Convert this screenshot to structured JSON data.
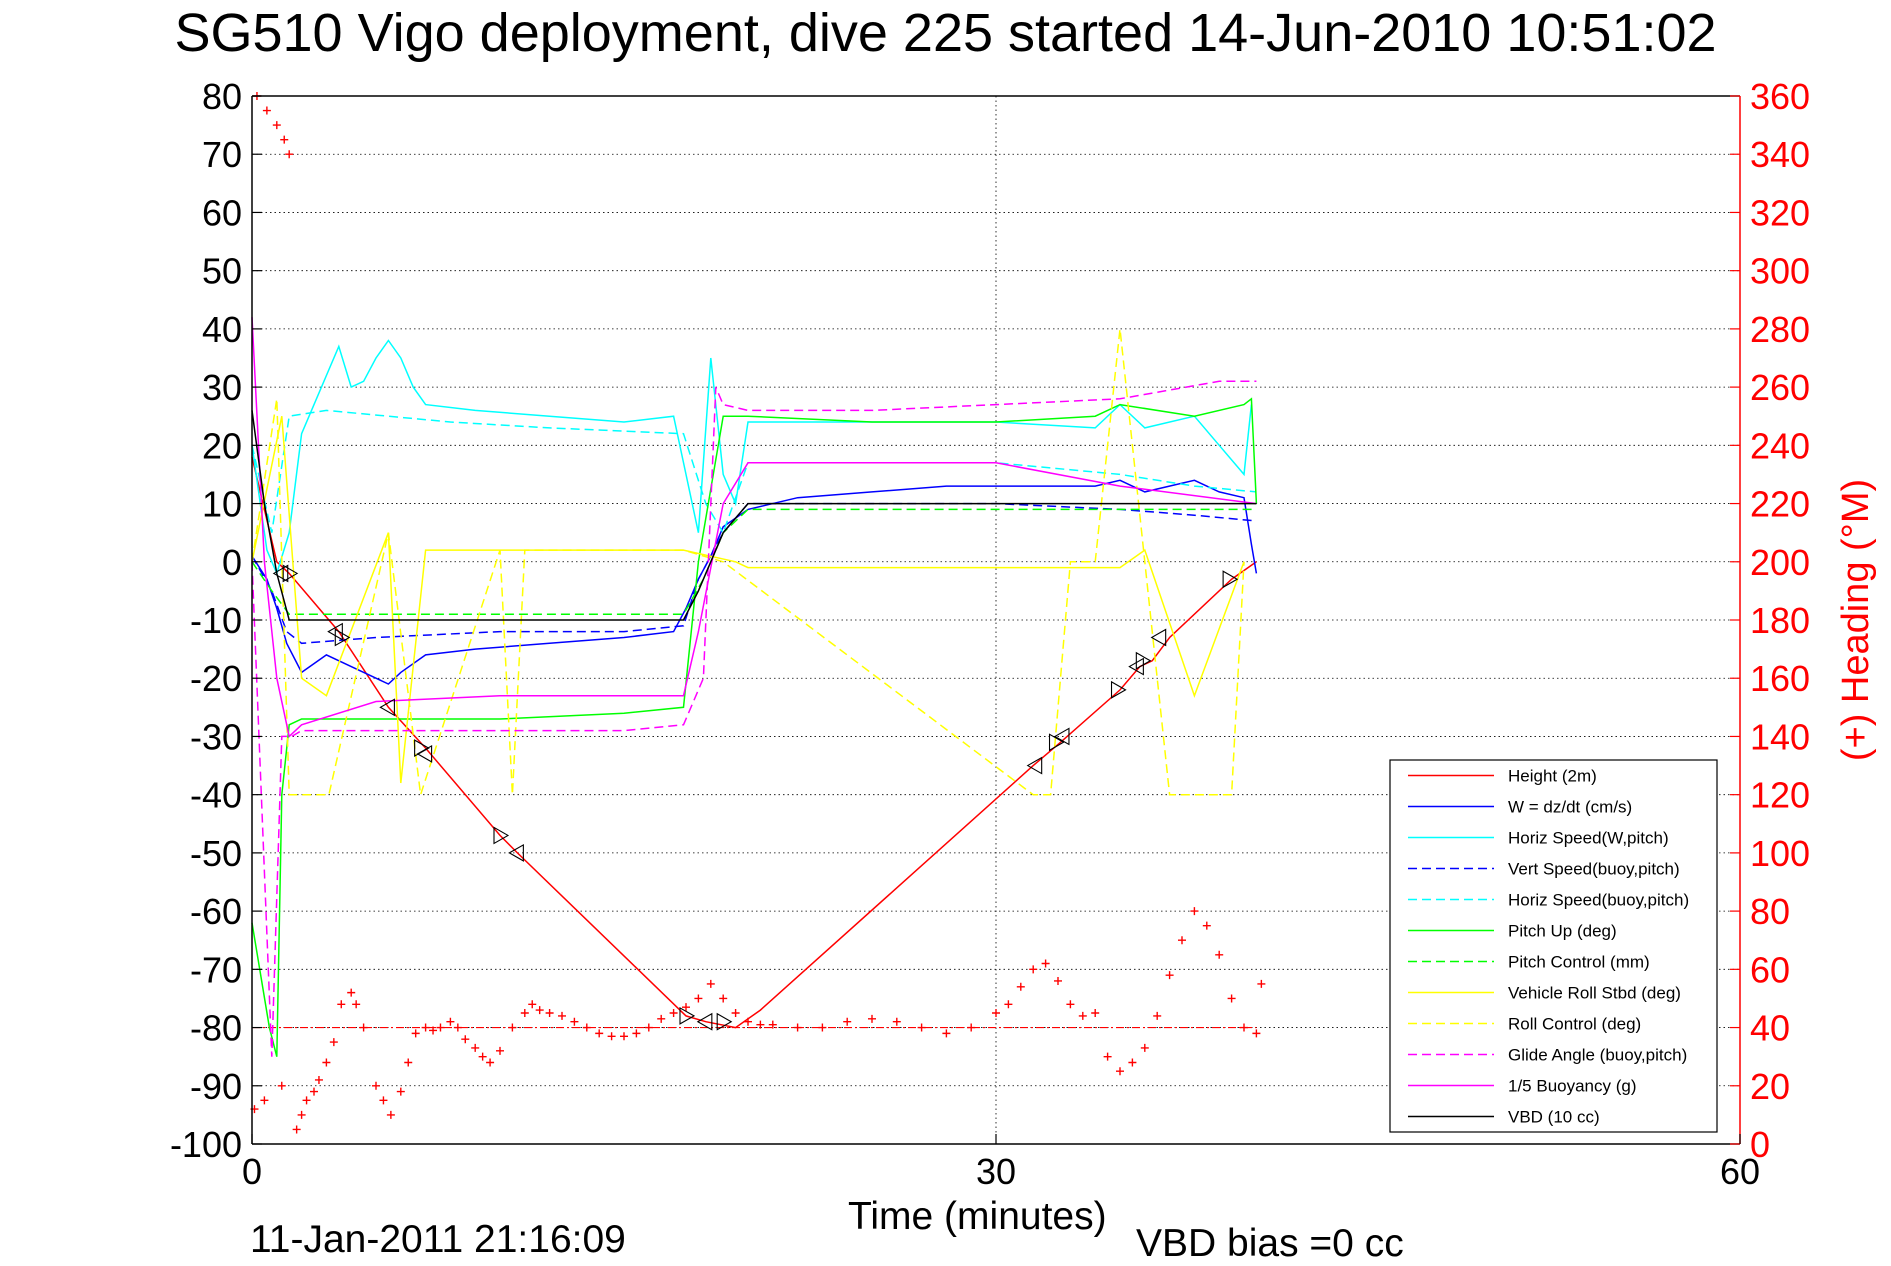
{
  "title": "SG510 Vigo deployment, dive 225 started 14-Jun-2010 10:51:02",
  "footer": {
    "date": "11-Jan-2011 21:16:09",
    "vbd_bias": "VBD bias =0 cc"
  },
  "chart_data": {
    "type": "line",
    "xlabel": "Time (minutes)",
    "ylabel": "",
    "ylabel_right": "(+) Heading (°M)",
    "xlim": [
      0,
      60
    ],
    "ylim": [
      -100,
      80
    ],
    "ylim_right": [
      0,
      360
    ],
    "xticks": [
      0,
      30,
      60
    ],
    "yticks": [
      -100,
      -90,
      -80,
      -70,
      -60,
      -50,
      -40,
      -30,
      -20,
      -10,
      0,
      10,
      20,
      30,
      40,
      50,
      60,
      70,
      80
    ],
    "yticks_right": [
      0,
      20,
      40,
      60,
      80,
      100,
      120,
      140,
      160,
      180,
      200,
      220,
      240,
      260,
      280,
      300,
      320,
      340,
      360
    ],
    "grid": true,
    "legend_position": "bottom-right",
    "colors": {
      "height": "#ff0000",
      "w": "#0000ff",
      "cyan": "#00ffff",
      "green": "#00ff00",
      "yellow": "#ffff00",
      "magenta": "#ff00ff",
      "black": "#000000",
      "axis_right": "#ff0000"
    },
    "series": [
      {
        "name": "Height (2m)",
        "color": "#ff0000",
        "dash": false,
        "x": [
          0,
          1.0,
          1.5,
          3.5,
          5.5,
          7.0,
          10.0,
          10.7,
          17.5,
          18.3,
          19.5,
          20.5,
          31.5,
          32.6,
          35.0,
          35.8,
          36.3,
          37.0,
          39.5,
          40.5
        ],
        "y": [
          18,
          0,
          -2,
          -12,
          -25,
          -32,
          -47,
          -50,
          -78,
          -79,
          -80,
          -77,
          -35,
          -31,
          -22,
          -18,
          -17,
          -13,
          -3,
          0
        ]
      },
      {
        "name": "W = dz/dt (cm/s)",
        "color": "#0000ff",
        "dash": false,
        "x": [
          0,
          0.6,
          1.0,
          1.4,
          2.0,
          3.0,
          4.0,
          5.0,
          5.5,
          6.0,
          7.0,
          9.0,
          12.0,
          15.0,
          17.0,
          17.5,
          18.0,
          18.5,
          19.0,
          20.0,
          22.0,
          25.0,
          28.0,
          31.0,
          34.0,
          35.0,
          36.0,
          38.0,
          39.0,
          40.0,
          40.3,
          40.5
        ],
        "y": [
          1,
          -3,
          -8,
          -14,
          -19,
          -16,
          -18,
          -20,
          -21,
          -19,
          -16,
          -15,
          -14,
          -13,
          -12,
          -8,
          -3,
          1,
          6,
          9,
          11,
          12,
          13,
          13,
          13,
          14,
          12,
          14,
          12,
          11,
          3,
          -2
        ]
      },
      {
        "name": "Horiz Speed(W,pitch)",
        "color": "#00ffff",
        "dash": false,
        "x": [
          0,
          0.6,
          1.0,
          1.5,
          2.0,
          3.0,
          3.5,
          4.0,
          4.5,
          5.0,
          5.5,
          6.0,
          6.5,
          7.0,
          9.0,
          12.0,
          15.0,
          17.0,
          17.5,
          18.0,
          18.5,
          19.0,
          19.5,
          20.0,
          25.0,
          30.0,
          34.0,
          35.0,
          36.0,
          38.0,
          39.0,
          40.0,
          40.3
        ],
        "y": [
          20,
          2,
          -2,
          5,
          22,
          32,
          37,
          30,
          31,
          35,
          38,
          35,
          30,
          27,
          26,
          25,
          24,
          25,
          15,
          5,
          35,
          15,
          10,
          24,
          24,
          24,
          23,
          27,
          23,
          25,
          20,
          15,
          27
        ]
      },
      {
        "name": "Vert Speed(buoy,pitch)",
        "color": "#0000ff",
        "dash": true,
        "x": [
          0,
          0.8,
          1.4,
          2.0,
          5.0,
          10.0,
          15.0,
          17.4,
          18.0,
          19.0,
          20.0,
          30.0,
          35.0,
          38.0,
          40.5
        ],
        "y": [
          1,
          -5,
          -12,
          -14,
          -13,
          -12,
          -12,
          -11,
          -3,
          5,
          10,
          10,
          9,
          8,
          7
        ]
      },
      {
        "name": "Horiz Speed(buoy,pitch)",
        "color": "#00ffff",
        "dash": true,
        "x": [
          0,
          0.8,
          1.5,
          3.0,
          8.0,
          12.0,
          17.4,
          18.3,
          19.0,
          20.0,
          25.0,
          30.0,
          35.0,
          38.0,
          40.5
        ],
        "y": [
          20,
          5,
          25,
          26,
          24,
          23,
          22,
          10,
          5,
          17,
          17,
          17,
          15,
          13,
          12
        ]
      },
      {
        "name": "Pitch Up (deg)",
        "color": "#00ff00",
        "dash": false,
        "x": [
          0,
          0.7,
          1.0,
          1.2,
          1.5,
          2.0,
          5.0,
          10.0,
          15.0,
          17.4,
          18.0,
          19.0,
          20.0,
          25.0,
          30.0,
          34.0,
          35.0,
          38.0,
          40.0,
          40.3,
          40.5
        ],
        "y": [
          -62,
          -80,
          -85,
          -40,
          -28,
          -27,
          -27,
          -27,
          -26,
          -25,
          0,
          25,
          25,
          24,
          24,
          25,
          27,
          25,
          27,
          28,
          10
        ]
      },
      {
        "name": "Pitch Control (mm)",
        "color": "#00ff00",
        "dash": true,
        "x": [
          0,
          0.8,
          1.5,
          17.4,
          18.2,
          19.0,
          20.0,
          30.0,
          40.5
        ],
        "y": [
          0,
          -5,
          -9,
          -9,
          -3,
          5,
          9,
          9,
          9
        ]
      },
      {
        "name": "Vehicle Roll Stbd (deg)",
        "color": "#ffff00",
        "dash": false,
        "x": [
          0,
          1.2,
          2.0,
          3.0,
          5.5,
          6.0,
          7.0,
          10.0,
          11.0,
          17.4,
          19.5,
          20.0,
          25.0,
          30.0,
          35.0,
          36.0,
          38.0,
          40.0
        ],
        "y": [
          0,
          25,
          -20,
          -23,
          5,
          -38,
          2,
          2,
          2,
          2,
          0,
          -1,
          -1,
          -1,
          -1,
          2,
          -23,
          0
        ]
      },
      {
        "name": "Roll Control (deg)",
        "color": "#ffff00",
        "dash": true,
        "x": [
          0,
          1.0,
          1.5,
          3.1,
          5.5,
          6.8,
          10.0,
          10.5,
          11.0,
          17.4,
          19.0,
          31.5,
          32.2,
          33.0,
          34.0,
          35.0,
          36.0,
          37.0,
          39.5,
          40.0
        ],
        "y": [
          0,
          28,
          -40,
          -40,
          5,
          -40,
          2,
          -40,
          2,
          2,
          0,
          -40,
          -40,
          0,
          0,
          40,
          0,
          -40,
          -40,
          0
        ]
      },
      {
        "name": "Glide Angle (buoy,pitch)",
        "color": "#ff00ff",
        "dash": true,
        "x": [
          0,
          0.8,
          1.2,
          1.6,
          2.0,
          5.0,
          10.0,
          15.0,
          17.4,
          18.2,
          18.7,
          19.0,
          20.0,
          25.0,
          30.0,
          35.0,
          39.0,
          40.5
        ],
        "y": [
          0,
          -85,
          -30,
          -30,
          -29,
          -29,
          -29,
          -29,
          -28,
          -20,
          30,
          27,
          26,
          26,
          27,
          28,
          31,
          31
        ]
      },
      {
        "name": "1/5 Buoyancy (g)",
        "color": "#ff00ff",
        "dash": false,
        "x": [
          0,
          0.5,
          1.0,
          1.5,
          2.0,
          5.0,
          10.0,
          17.4,
          18.0,
          19.0,
          20.0,
          30.0,
          35.0,
          40.5
        ],
        "y": [
          42,
          0,
          -20,
          -30,
          -28,
          -24,
          -23,
          -23,
          -12,
          10,
          17,
          17,
          13,
          10
        ]
      },
      {
        "name": "VBD (10 cc)",
        "color": "#000000",
        "dash": false,
        "x": [
          0,
          0.5,
          1.0,
          1.5,
          2.0,
          10.0,
          17.4,
          18.0,
          19.0,
          20.0,
          30.0,
          40.5
        ],
        "y": [
          26,
          10,
          -2,
          -10,
          -10,
          -10,
          -10,
          -5,
          5,
          10,
          10,
          10
        ]
      }
    ],
    "heading_points": {
      "name": "(+) Heading (°M)",
      "color": "#ff0000",
      "axis": "right",
      "x": [
        0.2,
        0.6,
        1.0,
        1.3,
        1.5,
        0.1,
        0.5,
        1.2,
        1.8,
        2.0,
        2.2,
        2.5,
        2.7,
        3.0,
        3.3,
        3.6,
        4.0,
        4.2,
        4.5,
        5.0,
        5.3,
        5.6,
        6.0,
        6.3,
        6.6,
        7.0,
        7.3,
        7.6,
        8.0,
        8.3,
        8.6,
        9.0,
        9.3,
        9.6,
        10.0,
        10.5,
        11.0,
        11.3,
        11.6,
        12.0,
        12.5,
        13.0,
        13.5,
        14.0,
        14.5,
        15.0,
        15.5,
        16.0,
        16.5,
        17.0,
        17.5,
        18.0,
        18.5,
        19.0,
        19.5,
        20.0,
        20.5,
        21.0,
        22.0,
        23.0,
        24.0,
        25.0,
        26.0,
        27.0,
        28.0,
        29.0,
        30.0,
        30.5,
        31.0,
        31.5,
        32.0,
        32.5,
        33.0,
        33.5,
        34.0,
        34.5,
        35.0,
        35.5,
        36.0,
        36.5,
        37.0,
        37.5,
        38.0,
        38.5,
        39.0,
        39.5,
        40.0,
        40.5,
        40.7
      ],
      "y": [
        360,
        355,
        350,
        345,
        340,
        12,
        15,
        20,
        5,
        10,
        15,
        18,
        22,
        28,
        35,
        48,
        52,
        48,
        40,
        20,
        15,
        10,
        18,
        28,
        38,
        40,
        39,
        40,
        42,
        40,
        36,
        33,
        30,
        28,
        32,
        40,
        45,
        48,
        46,
        45,
        44,
        42,
        40,
        38,
        37,
        37,
        38,
        40,
        43,
        45,
        47,
        50,
        55,
        50,
        45,
        42,
        41,
        41,
        40,
        40,
        42,
        43,
        42,
        40,
        38,
        40,
        45,
        48,
        54,
        60,
        62,
        56,
        48,
        44,
        45,
        30,
        25,
        28,
        33,
        44,
        58,
        70,
        80,
        75,
        65,
        50,
        40,
        38,
        55
      ]
    },
    "triangle_markers": {
      "x": [
        1.2,
        1.5,
        3.4,
        3.6,
        5.5,
        6.8,
        7.0,
        10.0,
        10.7,
        17.5,
        18.3,
        19.0,
        31.6,
        32.4,
        32.7,
        34.9,
        35.7,
        35.9,
        36.6,
        39.4
      ],
      "y": [
        -2,
        -2,
        -12,
        -13,
        -25,
        -32,
        -33,
        -47,
        -50,
        -78,
        -79,
        -79,
        -35,
        -31,
        -30,
        -22,
        -18,
        -17,
        -13,
        -3
      ]
    },
    "reference_line": {
      "y": -80,
      "color": "#ff0000",
      "style": "dash-dot"
    }
  }
}
